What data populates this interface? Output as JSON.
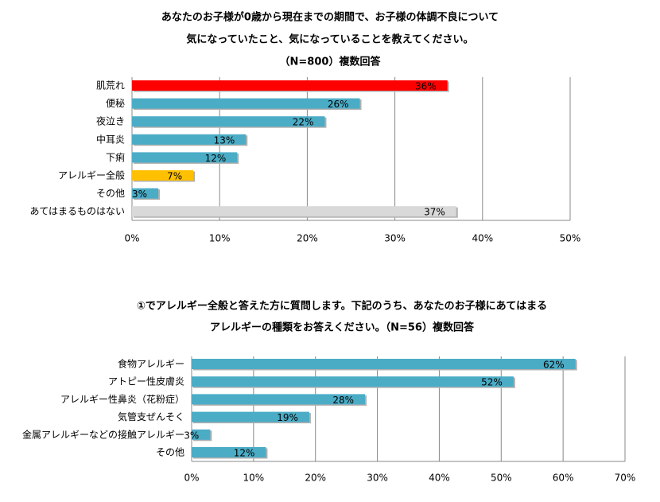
{
  "chart_data": [
    {
      "type": "bar",
      "orientation": "horizontal",
      "title": [
        "あなたのお子様が0歳から現在までの期間で、お子様の体調不良について",
        "気になっていたこと、気になっていることを教えてください。",
        "（N=800）複数回答"
      ],
      "categories": [
        "肌荒れ",
        "便秘",
        "夜泣き",
        "中耳炎",
        "下痢",
        "アレルギー全般",
        "その他",
        "あてはまるものはない"
      ],
      "values": [
        36,
        26,
        22,
        13,
        12,
        7,
        3,
        37
      ],
      "value_labels": [
        "36%",
        "26%",
        "22%",
        "13%",
        "12%",
        "7%",
        "3%",
        "37%"
      ],
      "colors": [
        "#ff0000",
        "#4bacc6",
        "#4bacc6",
        "#4bacc6",
        "#4bacc6",
        "#ffc000",
        "#4bacc6",
        "#d9d9d9"
      ],
      "xlim": [
        0,
        50
      ],
      "xticks": [
        {
          "value": 0,
          "label": "0%"
        },
        {
          "value": 10,
          "label": "10%"
        },
        {
          "value": 20,
          "label": "20%"
        },
        {
          "value": 30,
          "label": "30%"
        },
        {
          "value": 40,
          "label": "40%"
        },
        {
          "value": 50,
          "label": "50%"
        }
      ],
      "grid": true
    },
    {
      "type": "bar",
      "orientation": "horizontal",
      "title": [
        "①でアレルギー全般と答えた方に質問します。下記のうち、あなたのお子様にあてはまる",
        "アレルギーの種類をお答えください。（N=56）複数回答"
      ],
      "categories": [
        "食物アレルギー",
        "アトピー性皮膚炎",
        "アレルギー性鼻炎（花粉症）",
        "気管支ぜんそく",
        "金属アレルギーなどの接触アレルギー",
        "その他"
      ],
      "values": [
        62,
        52,
        28,
        19,
        3,
        12
      ],
      "value_labels": [
        "62%",
        "52%",
        "28%",
        "19%",
        "3%",
        "12%"
      ],
      "colors": [
        "#4bacc6",
        "#4bacc6",
        "#4bacc6",
        "#4bacc6",
        "#4bacc6",
        "#4bacc6"
      ],
      "xlim": [
        0,
        70
      ],
      "xticks": [
        {
          "value": 0,
          "label": "0%"
        },
        {
          "value": 10,
          "label": "10%"
        },
        {
          "value": 20,
          "label": "20%"
        },
        {
          "value": 30,
          "label": "30%"
        },
        {
          "value": 40,
          "label": "40%"
        },
        {
          "value": 50,
          "label": "50%"
        },
        {
          "value": 60,
          "label": "60%"
        },
        {
          "value": 70,
          "label": "70%"
        }
      ],
      "grid": true
    }
  ]
}
